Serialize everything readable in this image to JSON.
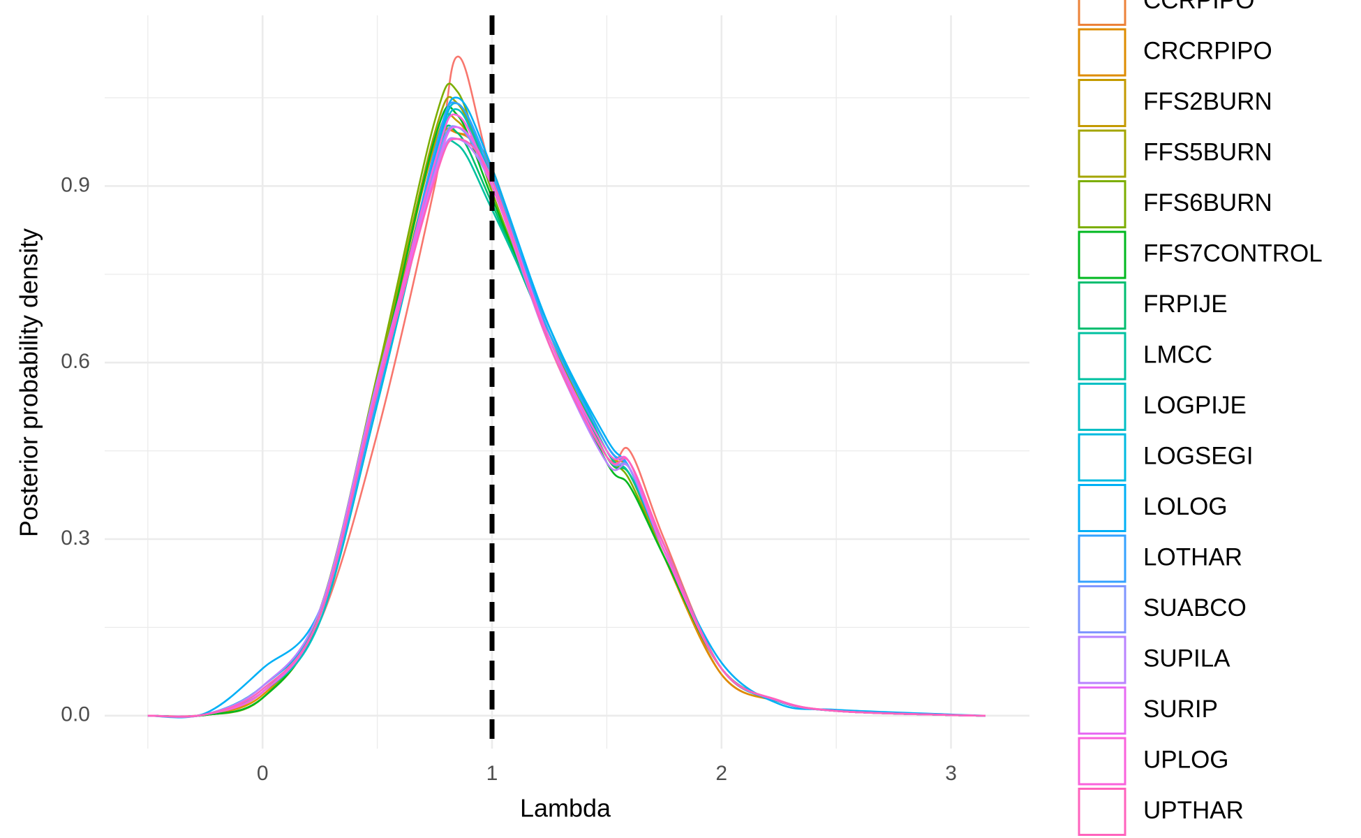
{
  "chart_data": {
    "type": "line",
    "xlabel": "Lambda",
    "ylabel": "Posterior probability density",
    "x": [
      -0.5,
      -0.25,
      0,
      0.25,
      0.5,
      0.75,
      0.85,
      1,
      1.25,
      1.5,
      1.6,
      1.75,
      2,
      2.25,
      2.5,
      3,
      3.15
    ],
    "xlim": [
      -0.688,
      3.342
    ],
    "ylim": [
      -0.056,
      1.19
    ],
    "xticks": [
      0,
      1,
      2,
      3
    ],
    "yticks": [
      {
        "value": 0,
        "label": "0.0"
      },
      0.3,
      0.6,
      0.9
    ],
    "xminor": [
      -0.5,
      0.5,
      1.5,
      2.5
    ],
    "yminor": [
      0.15,
      0.45,
      0.75,
      1.05
    ],
    "grid": true,
    "vline": 1,
    "legend": "right",
    "series": [
      {
        "color": "#F8766D",
        "values": [
          0,
          0.002,
          0.04,
          0.16,
          0.48,
          0.9,
          1.12,
          0.92,
          0.64,
          0.44,
          0.45,
          0.3,
          0.08,
          0.025,
          0.008,
          0.001,
          0
        ]
      },
      {
        "name": "CCRPIPO",
        "color": "#EC8239",
        "values": [
          0,
          0.002,
          0.04,
          0.17,
          0.55,
          0.94,
          0.99,
          0.92,
          0.64,
          0.45,
          0.42,
          0.28,
          0.07,
          0.025,
          0.008,
          0.001,
          0
        ]
      },
      {
        "name": "CRCRPIPO",
        "color": "#DE8C00",
        "values": [
          0,
          0.002,
          0.035,
          0.17,
          0.56,
          0.95,
          0.99,
          0.93,
          0.63,
          0.44,
          0.41,
          0.27,
          0.07,
          0.024,
          0.008,
          0.001,
          0
        ]
      },
      {
        "name": "FFS2BURN",
        "color": "#C49A00",
        "values": [
          0,
          0.002,
          0.04,
          0.18,
          0.57,
          0.97,
          1.01,
          0.9,
          0.64,
          0.45,
          0.42,
          0.28,
          0.08,
          0.025,
          0.008,
          0.001,
          0
        ]
      },
      {
        "name": "FFS5BURN",
        "color": "#A3A500",
        "values": [
          0,
          0.001,
          0.03,
          0.17,
          0.57,
          0.99,
          1.04,
          0.9,
          0.65,
          0.44,
          0.41,
          0.28,
          0.08,
          0.025,
          0.008,
          0.001,
          0
        ]
      },
      {
        "name": "FFS6BURN",
        "color": "#7CAE00",
        "values": [
          0,
          0.001,
          0.03,
          0.18,
          0.58,
          1.01,
          1.06,
          0.89,
          0.64,
          0.45,
          0.4,
          0.27,
          0.08,
          0.024,
          0.008,
          0.001,
          0
        ]
      },
      {
        "name": "FFS7CONTROL",
        "color": "#00B81F",
        "values": [
          0,
          0.001,
          0.03,
          0.17,
          0.56,
          0.98,
          1.02,
          0.88,
          0.64,
          0.43,
          0.39,
          0.27,
          0.08,
          0.025,
          0.008,
          0.001,
          0
        ]
      },
      {
        "name": "FRPIJE",
        "color": "#00BE70",
        "values": [
          0,
          0.002,
          0.04,
          0.17,
          0.55,
          0.95,
          0.99,
          0.87,
          0.64,
          0.44,
          0.41,
          0.28,
          0.08,
          0.025,
          0.008,
          0.001,
          0
        ]
      },
      {
        "name": "LMCC",
        "color": "#00C1A0",
        "values": [
          0,
          0.002,
          0.04,
          0.17,
          0.54,
          0.92,
          0.97,
          0.86,
          0.65,
          0.45,
          0.41,
          0.28,
          0.08,
          0.025,
          0.008,
          0.001,
          0
        ]
      },
      {
        "name": "LOGPIJE",
        "color": "#00BFC4",
        "values": [
          0,
          0.002,
          0.04,
          0.16,
          0.53,
          0.93,
          1.03,
          0.9,
          0.66,
          0.46,
          0.42,
          0.29,
          0.08,
          0.025,
          0.008,
          0.001,
          0
        ]
      },
      {
        "name": "LOGSEGI",
        "color": "#00BAE0",
        "values": [
          0,
          0.002,
          0.05,
          0.17,
          0.53,
          0.94,
          1.04,
          0.91,
          0.66,
          0.46,
          0.42,
          0.29,
          0.08,
          0.024,
          0.008,
          0.001,
          0
        ]
      },
      {
        "name": "LOLOG",
        "color": "#00B0F6",
        "values": [
          0,
          0.004,
          0.08,
          0.18,
          0.54,
          0.95,
          1.05,
          0.93,
          0.66,
          0.47,
          0.42,
          0.28,
          0.09,
          0.02,
          0.01,
          0.002,
          0
        ]
      },
      {
        "name": "LOTHAR",
        "color": "#35A2FF",
        "values": [
          0,
          0.002,
          0.04,
          0.17,
          0.54,
          0.96,
          1.04,
          0.92,
          0.65,
          0.46,
          0.42,
          0.28,
          0.08,
          0.025,
          0.008,
          0.001,
          0
        ]
      },
      {
        "name": "SUABCO",
        "color": "#7F96FF",
        "values": [
          0,
          0.002,
          0.04,
          0.17,
          0.55,
          0.93,
          1.0,
          0.9,
          0.63,
          0.44,
          0.42,
          0.28,
          0.08,
          0.025,
          0.008,
          0.001,
          0
        ]
      },
      {
        "name": "SUPILA",
        "color": "#B983FF",
        "values": [
          0,
          0.002,
          0.05,
          0.18,
          0.57,
          0.92,
          0.98,
          0.9,
          0.63,
          0.43,
          0.42,
          0.28,
          0.08,
          0.025,
          0.008,
          0.001,
          0
        ]
      },
      {
        "name": "SURIP",
        "color": "#E76BF3",
        "values": [
          0,
          0.002,
          0.04,
          0.17,
          0.56,
          0.92,
          1.0,
          0.91,
          0.64,
          0.44,
          0.43,
          0.29,
          0.08,
          0.026,
          0.008,
          0.001,
          0
        ]
      },
      {
        "name": "UPLOG",
        "color": "#FA62DB",
        "values": [
          0,
          0.002,
          0.04,
          0.17,
          0.56,
          0.94,
          1.02,
          0.9,
          0.64,
          0.45,
          0.43,
          0.28,
          0.08,
          0.025,
          0.008,
          0.001,
          0
        ]
      },
      {
        "name": "UPTHAR",
        "color": "#FF62BC",
        "values": [
          0,
          0.002,
          0.045,
          0.17,
          0.55,
          0.91,
          0.98,
          0.91,
          0.63,
          0.44,
          0.43,
          0.29,
          0.08,
          0.026,
          0.008,
          0.001,
          0
        ]
      }
    ]
  }
}
